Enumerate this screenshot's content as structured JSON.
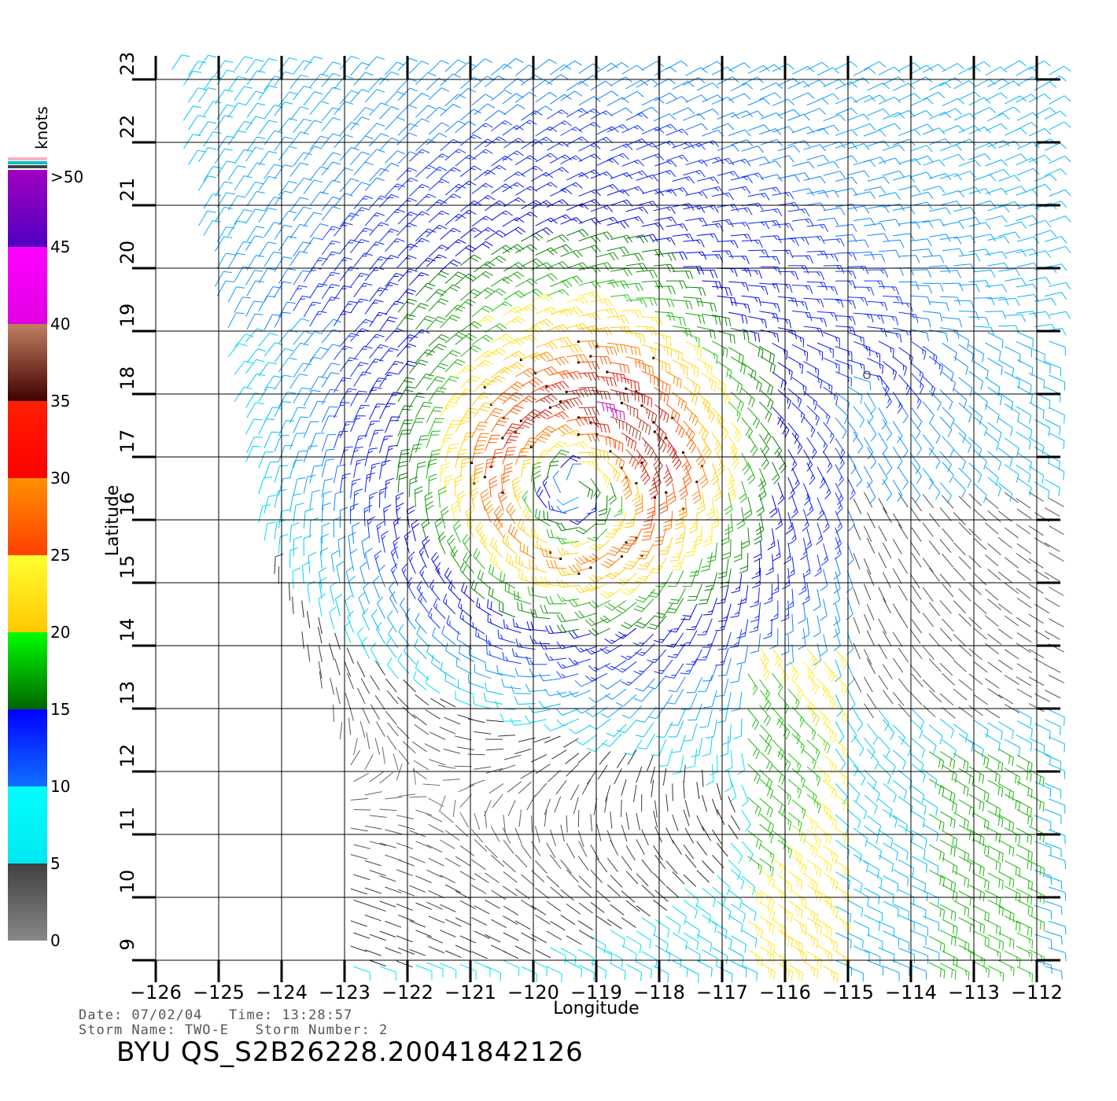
{
  "map": {
    "xlabel": "Longitude",
    "ylabel": "Latitude",
    "lon_range": [
      -126,
      -112
    ],
    "lat_range": [
      9,
      23
    ],
    "lon_ticks": [
      -126,
      -125,
      -124,
      -123,
      -122,
      -121,
      -120,
      -119,
      -118,
      -117,
      -116,
      -115,
      -114,
      -113,
      -112
    ],
    "lon_tick_labels": [
      "−126",
      "−125",
      "−124",
      "−123",
      "−122",
      "−121",
      "−120",
      "−119",
      "−118",
      "−117",
      "−116",
      "−115",
      "−114",
      "−113",
      "−112"
    ],
    "lat_ticks": [
      9,
      10,
      11,
      12,
      13,
      14,
      15,
      16,
      17,
      18,
      19,
      20,
      21,
      22,
      23
    ],
    "lat_tick_labels": [
      "9",
      "10",
      "11",
      "12",
      "13",
      "14",
      "15",
      "16",
      "17",
      "18",
      "19",
      "20",
      "21",
      "22",
      "23"
    ],
    "grid": true,
    "storm_center": {
      "lon": -119.3,
      "lat": 16.6
    },
    "low_marker": {
      "lon": -114.7,
      "lat": 18.3,
      "label": "O"
    }
  },
  "legend": {
    "title": "knots",
    "bands": [
      {
        "from": 0,
        "to": 5,
        "top": "#404040",
        "bottom": "#888888"
      },
      {
        "from": 5,
        "to": 10,
        "top": "#00ffff",
        "bottom": "#00e8f0"
      },
      {
        "from": 10,
        "to": 15,
        "top": "#0000ff",
        "bottom": "#1070ff"
      },
      {
        "from": 15,
        "to": 20,
        "top": "#00ff00",
        "bottom": "#006400"
      },
      {
        "from": 20,
        "to": 25,
        "top": "#ffff30",
        "bottom": "#ffc800"
      },
      {
        "from": 25,
        "to": 30,
        "top": "#ff9000",
        "bottom": "#ff4000"
      },
      {
        "from": 30,
        "to": 35,
        "top": "#ff2000",
        "bottom": "#ff0000"
      },
      {
        "from": 35,
        "to": 40,
        "top": "#c08060",
        "bottom": "#400000"
      },
      {
        "from": 40,
        "to": 45,
        "top": "#ff00ff",
        "bottom": "#e000e0"
      },
      {
        "from": 45,
        "to": 50,
        "top": "#a000c0",
        "bottom": "#5000c0"
      }
    ],
    "tick_labels": [
      "0",
      "5",
      "10",
      "15",
      "20",
      "25",
      "30",
      "35",
      "40",
      "45",
      ">50"
    ],
    "top_swatches": [
      "#ffb0c0",
      "#00c0c0",
      "#404040"
    ]
  },
  "info": {
    "line1": "Date: 07/02/04   Time: 13:28:57",
    "line2": "Storm Name: TWO-E   Storm Number: 2",
    "file_id": "BYU QS_S2B26228.20041842126"
  }
}
